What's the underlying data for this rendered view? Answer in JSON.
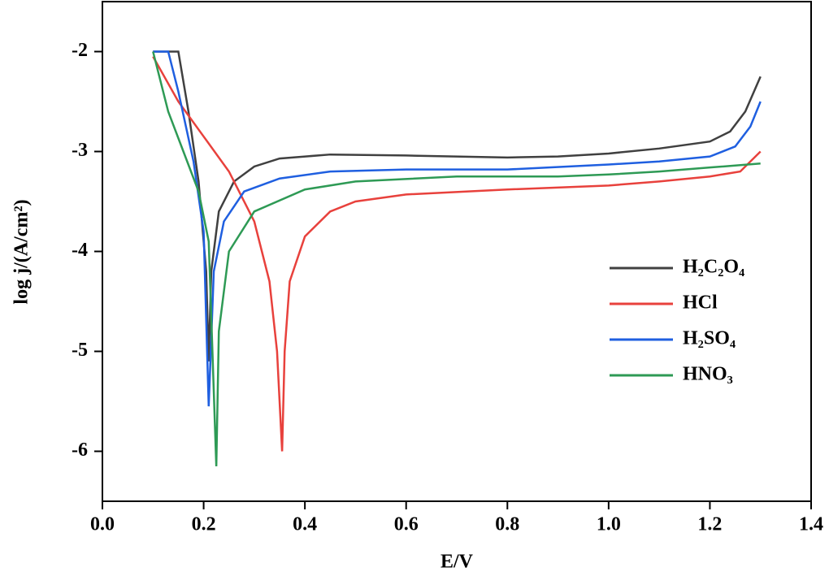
{
  "chart_data": {
    "type": "line",
    "xlabel": "E/V",
    "ylabel": "log j/(A/cm²)",
    "xlim": [
      0,
      1.4
    ],
    "ylim": [
      -6.5,
      -1.5
    ],
    "xticks": [
      {
        "value": 0,
        "label": "0.0"
      },
      0.2,
      0.4,
      0.6,
      0.8,
      {
        "value": 1,
        "label": "1.0"
      },
      1.2,
      1.4
    ],
    "yticks": [
      -2,
      -3,
      -4,
      -5,
      -6
    ],
    "legend": "right",
    "series": [
      {
        "name": "H₂C₂O₄",
        "color": "#404040",
        "x": [
          0.1,
          0.15,
          0.17,
          0.19,
          0.205,
          0.21,
          0.215,
          0.23,
          0.26,
          0.3,
          0.35,
          0.45,
          0.6,
          0.8,
          0.9,
          1.0,
          1.1,
          1.2,
          1.24,
          1.27,
          1.3
        ],
        "values": [
          -2,
          -2,
          -2.6,
          -3.3,
          -4.2,
          -5.1,
          -4.2,
          -3.6,
          -3.3,
          -3.15,
          -3.07,
          -3.03,
          -3.04,
          -3.06,
          -3.05,
          -3.02,
          -2.97,
          -2.9,
          -2.8,
          -2.6,
          -2.25
        ]
      },
      {
        "name": "HCl",
        "color": "#e8413c",
        "x": [
          0.1,
          0.15,
          0.2,
          0.25,
          0.3,
          0.33,
          0.345,
          0.355,
          0.36,
          0.37,
          0.4,
          0.45,
          0.5,
          0.6,
          0.8,
          1.0,
          1.1,
          1.2,
          1.26,
          1.3
        ],
        "values": [
          -2.05,
          -2.5,
          -2.85,
          -3.2,
          -3.7,
          -4.3,
          -5.0,
          -6.0,
          -5.0,
          -4.3,
          -3.85,
          -3.6,
          -3.5,
          -3.43,
          -3.38,
          -3.34,
          -3.3,
          -3.25,
          -3.2,
          -3.0
        ]
      },
      {
        "name": "H₂SO₄",
        "color": "#1f5fe0",
        "x": [
          0.1,
          0.13,
          0.15,
          0.18,
          0.2,
          0.21,
          0.22,
          0.24,
          0.28,
          0.35,
          0.45,
          0.6,
          0.8,
          1.0,
          1.1,
          1.2,
          1.25,
          1.28,
          1.3
        ],
        "values": [
          -2,
          -2,
          -2.4,
          -3.1,
          -3.8,
          -5.55,
          -4.2,
          -3.7,
          -3.4,
          -3.27,
          -3.2,
          -3.18,
          -3.18,
          -3.13,
          -3.1,
          -3.05,
          -2.95,
          -2.75,
          -2.5
        ]
      },
      {
        "name": "HNO₃",
        "color": "#2e9a55",
        "x": [
          0.1,
          0.13,
          0.16,
          0.19,
          0.21,
          0.225,
          0.23,
          0.25,
          0.3,
          0.4,
          0.5,
          0.7,
          0.9,
          1.0,
          1.1,
          1.2,
          1.3
        ],
        "values": [
          -2,
          -2.6,
          -3.0,
          -3.4,
          -3.9,
          -6.15,
          -4.8,
          -4.0,
          -3.6,
          -3.38,
          -3.3,
          -3.25,
          -3.25,
          -3.23,
          -3.2,
          -3.16,
          -3.12
        ]
      }
    ]
  }
}
